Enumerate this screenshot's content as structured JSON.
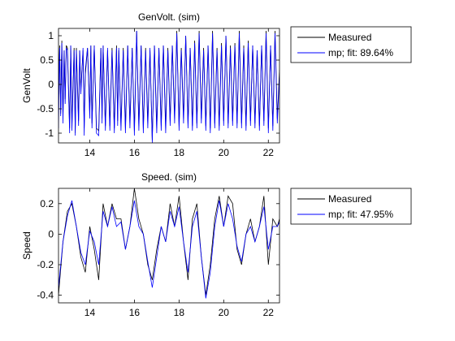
{
  "chart_data": [
    {
      "type": "line",
      "title": "GenVolt. (sim)",
      "ylabel": "GenVolt",
      "xlabel": "",
      "xlim": [
        12.6,
        22.5
      ],
      "ylim": [
        -1.2,
        1.15
      ],
      "x_ticks": [
        14,
        16,
        18,
        20,
        22
      ],
      "y_ticks": [
        -1,
        -0.5,
        0,
        0.5,
        1
      ],
      "x_tick_labels": [
        "14",
        "16",
        "18",
        "20",
        "22"
      ],
      "y_tick_labels": [
        "-1",
        "-0.5",
        "0",
        "0.5",
        "1"
      ],
      "legend_position": "outside-right",
      "series": [
        {
          "name": "Measured",
          "color": "#000000",
          "x": [
            12.6,
            12.65,
            12.7,
            12.75,
            12.8,
            12.85,
            12.9,
            12.95,
            13.0,
            13.1,
            13.15,
            13.2,
            13.3,
            13.35,
            13.4,
            13.5,
            13.55,
            13.6,
            13.7,
            13.75,
            13.8,
            13.9,
            14.0,
            14.05,
            14.1,
            14.2,
            14.3,
            14.4,
            14.5,
            14.55,
            14.6,
            14.7,
            14.8,
            14.9,
            15.0,
            15.1,
            15.2,
            15.25,
            15.3,
            15.4,
            15.5,
            15.6,
            15.7,
            15.8,
            15.9,
            16.0,
            16.1,
            16.2,
            16.3,
            16.4,
            16.5,
            16.6,
            16.7,
            16.8,
            16.9,
            17.0,
            17.1,
            17.2,
            17.3,
            17.4,
            17.5,
            17.6,
            17.7,
            17.8,
            17.9,
            18.0,
            18.1,
            18.2,
            18.3,
            18.4,
            18.5,
            18.6,
            18.7,
            18.8,
            18.9,
            19.0,
            19.1,
            19.2,
            19.3,
            19.4,
            19.5,
            19.6,
            19.7,
            19.8,
            19.9,
            20.0,
            20.1,
            20.2,
            20.3,
            20.4,
            20.5,
            20.6,
            20.7,
            20.8,
            20.9,
            21.0,
            21.1,
            21.2,
            21.3,
            21.4,
            21.5,
            21.6,
            21.7,
            21.8,
            21.9,
            22.0,
            22.1,
            22.2,
            22.3,
            22.4,
            22.5
          ],
          "y": [
            -0.2,
            0.8,
            -0.6,
            0.9,
            -0.7,
            0.7,
            -0.3,
            0.8,
            0.75,
            -0.9,
            0.8,
            -0.85,
            0.75,
            -1.0,
            0.75,
            -0.75,
            0.7,
            -0.1,
            0.7,
            -0.9,
            0.2,
            0.75,
            -0.6,
            0.8,
            -0.8,
            0.8,
            -0.9,
            -0.95,
            0.75,
            -0.7,
            0.8,
            -0.85,
            0.7,
            -0.85,
            0.75,
            -0.9,
            0.8,
            -0.75,
            0.7,
            -0.85,
            0.75,
            -0.9,
            0.8,
            -0.8,
            0.75,
            -0.95,
            1.1,
            -0.85,
            0.8,
            -0.9,
            0.75,
            -0.8,
            0.7,
            -1.15,
            0.8,
            -0.9,
            0.75,
            -0.85,
            0.8,
            -0.9,
            0.75,
            -0.75,
            0.8,
            -0.7,
            1.1,
            -0.85,
            0.75,
            -0.7,
            1.0,
            -0.8,
            0.75,
            -0.85,
            0.9,
            -0.8,
            1.1,
            -0.7,
            0.75,
            -0.85,
            0.8,
            -0.9,
            1.1,
            -0.8,
            0.75,
            -0.85,
            0.85,
            -0.75,
            1.0,
            -0.8,
            0.8,
            -0.75,
            0.85,
            -0.8,
            1.1,
            -0.8,
            0.8,
            -0.85,
            0.9,
            -0.75,
            0.8,
            -0.8,
            0.7,
            -0.85,
            0.8,
            -0.75,
            1.1,
            -0.9,
            0.8,
            -0.85,
            1.1,
            -0.7,
            0.3
          ]
        },
        {
          "name": "mp; fit: 89.64%",
          "color": "#0000ff",
          "x": [
            12.6,
            12.65,
            12.7,
            12.75,
            12.8,
            12.85,
            12.9,
            12.95,
            13.0,
            13.1,
            13.15,
            13.2,
            13.3,
            13.35,
            13.4,
            13.5,
            13.55,
            13.6,
            13.7,
            13.75,
            13.8,
            13.9,
            14.0,
            14.05,
            14.1,
            14.2,
            14.3,
            14.4,
            14.5,
            14.55,
            14.6,
            14.7,
            14.8,
            14.9,
            15.0,
            15.1,
            15.2,
            15.25,
            15.3,
            15.4,
            15.5,
            15.6,
            15.7,
            15.8,
            15.9,
            16.0,
            16.1,
            16.2,
            16.3,
            16.4,
            16.5,
            16.6,
            16.7,
            16.8,
            16.9,
            17.0,
            17.1,
            17.2,
            17.3,
            17.4,
            17.5,
            17.6,
            17.7,
            17.8,
            17.9,
            18.0,
            18.1,
            18.2,
            18.3,
            18.4,
            18.5,
            18.6,
            18.7,
            18.8,
            18.9,
            19.0,
            19.1,
            19.2,
            19.3,
            19.4,
            19.5,
            19.6,
            19.7,
            19.8,
            19.9,
            20.0,
            20.1,
            20.2,
            20.3,
            20.4,
            20.5,
            20.6,
            20.7,
            20.8,
            20.9,
            21.0,
            21.1,
            21.2,
            21.3,
            21.4,
            21.5,
            21.6,
            21.7,
            21.8,
            21.9,
            22.0,
            22.1,
            22.2,
            22.3,
            22.4,
            22.5
          ],
          "y": [
            -0.9,
            0.75,
            -0.65,
            0.85,
            -0.8,
            0.7,
            -0.4,
            0.75,
            0.7,
            -1.0,
            0.8,
            -0.95,
            0.7,
            -1.05,
            0.7,
            -0.85,
            0.7,
            -0.2,
            0.75,
            -1.05,
            0.3,
            0.75,
            -0.7,
            0.8,
            -0.9,
            0.8,
            -1.0,
            -1.05,
            0.75,
            -0.8,
            0.8,
            -0.95,
            0.75,
            -0.95,
            0.7,
            -1.0,
            0.75,
            -0.85,
            0.75,
            -0.95,
            0.7,
            -1.0,
            0.8,
            -0.9,
            0.75,
            -1.05,
            1.1,
            -0.95,
            0.8,
            -1.0,
            0.7,
            -0.9,
            0.75,
            -1.2,
            0.8,
            -1.0,
            0.75,
            -0.95,
            0.8,
            -1.0,
            0.7,
            -0.85,
            0.8,
            -0.8,
            1.05,
            -0.95,
            0.7,
            -0.8,
            1.0,
            -0.9,
            0.75,
            -0.95,
            0.85,
            -0.9,
            1.05,
            -0.8,
            0.7,
            -0.95,
            0.8,
            -1.0,
            1.05,
            -0.9,
            0.7,
            -0.95,
            0.8,
            -0.85,
            1.0,
            -0.9,
            0.75,
            -0.85,
            0.8,
            -0.9,
            1.05,
            -0.9,
            0.75,
            -0.95,
            0.85,
            -0.85,
            0.8,
            -0.9,
            0.7,
            -0.95,
            0.8,
            -0.85,
            1.05,
            -1.0,
            0.8,
            -0.95,
            1.05,
            -0.8,
            0.2
          ]
        }
      ]
    },
    {
      "type": "line",
      "title": "Speed. (sim)",
      "ylabel": "Speed",
      "xlabel": "",
      "xlim": [
        12.6,
        22.5
      ],
      "ylim": [
        -0.45,
        0.3
      ],
      "x_ticks": [
        14,
        16,
        18,
        20,
        22
      ],
      "y_ticks": [
        -0.4,
        -0.2,
        0,
        0.2
      ],
      "x_tick_labels": [
        "14",
        "16",
        "18",
        "20",
        "22"
      ],
      "y_tick_labels": [
        "-0.4",
        "-0.2",
        "0",
        "0.2"
      ],
      "legend_position": "outside-right",
      "series": [
        {
          "name": "Measured",
          "color": "#000000",
          "x": [
            12.6,
            12.8,
            13.0,
            13.2,
            13.4,
            13.6,
            13.8,
            14.0,
            14.2,
            14.4,
            14.6,
            14.8,
            15.0,
            15.2,
            15.4,
            15.6,
            15.8,
            16.0,
            16.2,
            16.4,
            16.6,
            16.8,
            17.0,
            17.2,
            17.4,
            17.6,
            17.8,
            18.0,
            18.2,
            18.4,
            18.6,
            18.8,
            19.0,
            19.2,
            19.4,
            19.6,
            19.8,
            20.0,
            20.2,
            20.4,
            20.6,
            20.8,
            21.0,
            21.2,
            21.4,
            21.6,
            21.8,
            22.0,
            22.2,
            22.4,
            22.5
          ],
          "y": [
            -0.4,
            -0.05,
            0.15,
            0.2,
            0.05,
            -0.15,
            -0.25,
            0.05,
            -0.1,
            -0.3,
            0.2,
            0.05,
            0.2,
            0.1,
            0.1,
            -0.1,
            0.05,
            0.3,
            0.1,
            0.0,
            -0.2,
            -0.3,
            -0.1,
            0.05,
            -0.05,
            0.2,
            0.05,
            0.25,
            -0.05,
            -0.3,
            0.1,
            0.2,
            -0.15,
            -0.4,
            -0.2,
            0.1,
            0.25,
            0.05,
            0.25,
            0.2,
            -0.1,
            -0.2,
            0.0,
            0.1,
            -0.05,
            0.05,
            0.25,
            -0.2,
            0.1,
            0.05,
            0.1
          ]
        },
        {
          "name": "mp; fit: 47.95%",
          "color": "#0000ff",
          "x": [
            12.6,
            12.8,
            13.0,
            13.2,
            13.4,
            13.6,
            13.8,
            14.0,
            14.2,
            14.4,
            14.6,
            14.8,
            15.0,
            15.2,
            15.4,
            15.6,
            15.8,
            16.0,
            16.2,
            16.4,
            16.6,
            16.8,
            17.0,
            17.2,
            17.4,
            17.6,
            17.8,
            18.0,
            18.2,
            18.4,
            18.6,
            18.8,
            19.0,
            19.2,
            19.4,
            19.6,
            19.8,
            20.0,
            20.2,
            20.4,
            20.6,
            20.8,
            21.0,
            21.2,
            21.4,
            21.6,
            21.8,
            22.0,
            22.2,
            22.4,
            22.5
          ],
          "y": [
            -0.35,
            -0.05,
            0.12,
            0.22,
            0.05,
            -0.12,
            -0.2,
            0.02,
            -0.05,
            -0.2,
            0.15,
            0.05,
            0.18,
            0.05,
            0.08,
            -0.1,
            0.05,
            0.22,
            0.05,
            0.0,
            -0.18,
            -0.35,
            -0.15,
            0.05,
            -0.05,
            0.15,
            0.05,
            0.18,
            -0.05,
            -0.25,
            0.05,
            0.15,
            -0.15,
            -0.42,
            -0.25,
            0.05,
            0.22,
            0.05,
            0.2,
            0.1,
            -0.08,
            -0.18,
            0.0,
            0.05,
            -0.05,
            0.05,
            0.18,
            -0.1,
            0.05,
            0.05,
            0.08
          ]
        }
      ]
    }
  ]
}
